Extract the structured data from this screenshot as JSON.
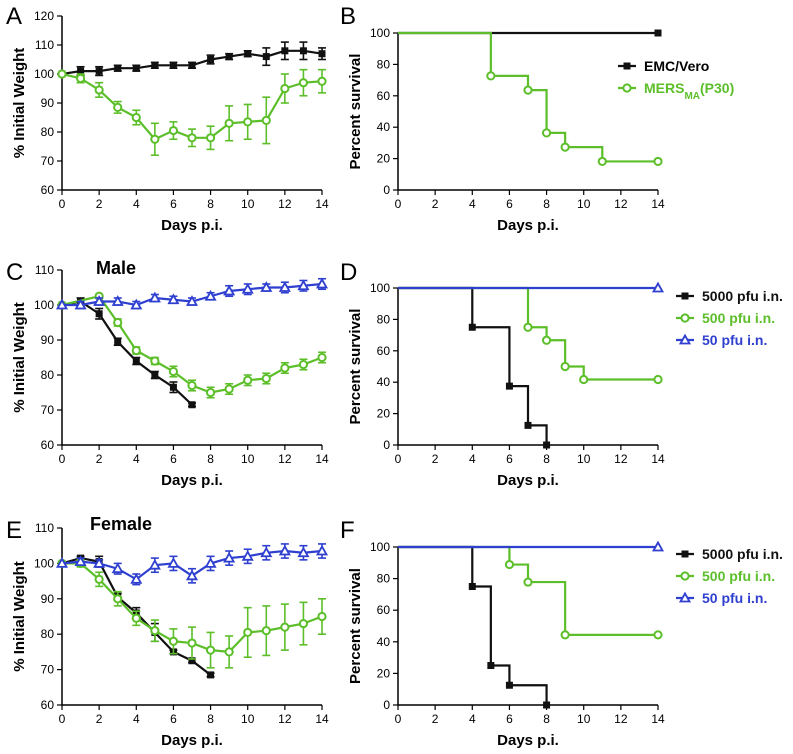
{
  "colors": {
    "black": "#111111",
    "green": "#5cbf2a",
    "blue": "#2f3fd0"
  },
  "chart_data": [
    {
      "panel": "A",
      "type": "line",
      "title": "",
      "xlabel": "Days p.i.",
      "ylabel": "% Initial Weight",
      "xlim": [
        0,
        14
      ],
      "ylim": [
        60,
        120
      ],
      "xticks": [
        "0",
        "2",
        "4",
        "6",
        "8",
        "10",
        "12",
        "14"
      ],
      "yticks": [
        "60",
        "70",
        "80",
        "90",
        "100",
        "110",
        "120"
      ],
      "series": [
        {
          "name": "EMC/Vero",
          "color": "black",
          "marker": "square",
          "x": [
            0,
            1,
            2,
            3,
            4,
            5,
            6,
            7,
            8,
            9,
            10,
            11,
            12,
            13,
            14
          ],
          "y": [
            100,
            101,
            101,
            102,
            102,
            103,
            103,
            103,
            105,
            106,
            107,
            106,
            108,
            108,
            107
          ],
          "err": [
            0,
            1.5,
            1.5,
            1,
            1,
            1,
            1,
            1,
            1.5,
            1,
            1,
            3,
            3,
            3,
            2
          ]
        },
        {
          "name": "MERSMA(P30)",
          "color": "green",
          "marker": "circle",
          "x": [
            0,
            1,
            2,
            3,
            4,
            5,
            6,
            7,
            8,
            9,
            10,
            11,
            12,
            13,
            14
          ],
          "y": [
            100,
            98.5,
            94.5,
            88.5,
            85,
            77.5,
            80.5,
            78,
            78,
            83,
            83.5,
            84,
            95,
            97,
            97.5
          ],
          "err": [
            0,
            1.5,
            2.5,
            2,
            2.5,
            5.5,
            3,
            3,
            4,
            6,
            6,
            8,
            5,
            4.5,
            4
          ]
        }
      ]
    },
    {
      "panel": "B",
      "type": "line",
      "title": "",
      "xlabel": "Days p.i.",
      "ylabel": "Percent survival",
      "xlim": [
        0,
        14
      ],
      "ylim": [
        0,
        100
      ],
      "xticks": [
        "0",
        "2",
        "4",
        "6",
        "8",
        "10",
        "12",
        "14"
      ],
      "yticks": [
        "0",
        "20",
        "40",
        "60",
        "80",
        "100"
      ],
      "legend_position": "top-right",
      "legend": [
        {
          "color": "black",
          "marker": "square",
          "text": "EMC/Vero"
        },
        {
          "color": "green",
          "marker": "circle",
          "text": "MERS",
          "sub": "MA",
          "suffix": "(P30)"
        }
      ],
      "series": [
        {
          "name": "EMC/Vero",
          "color": "black",
          "marker": "square",
          "step": true,
          "x": [
            0,
            14
          ],
          "y": [
            100,
            100
          ],
          "markers_at": [
            14
          ]
        },
        {
          "name": "MERSMA(P30)",
          "color": "green",
          "marker": "circle",
          "step": true,
          "x": [
            0,
            5,
            7,
            8,
            9,
            11,
            14
          ],
          "y": [
            100,
            72.7,
            63.6,
            36.4,
            27.3,
            18.2,
            18.2
          ],
          "markers_at": [
            5,
            7,
            8,
            9,
            11,
            14
          ]
        }
      ]
    },
    {
      "panel": "C",
      "type": "line",
      "title": "Male",
      "xlabel": "Days p.i.",
      "ylabel": "% Initial Weight",
      "xlim": [
        0,
        14
      ],
      "ylim": [
        60,
        110
      ],
      "xticks": [
        "0",
        "2",
        "4",
        "6",
        "8",
        "10",
        "12",
        "14"
      ],
      "yticks": [
        "60",
        "70",
        "80",
        "90",
        "100",
        "110"
      ],
      "series": [
        {
          "name": "5000 pfu i.n.",
          "color": "black",
          "marker": "square",
          "x": [
            0,
            1,
            2,
            3,
            4,
            5,
            6,
            7
          ],
          "y": [
            100,
            101,
            97.5,
            89.5,
            84,
            80,
            76.5,
            71.5
          ],
          "err": [
            0,
            1,
            1.5,
            1,
            1,
            1,
            1.5,
            0.5
          ]
        },
        {
          "name": "500 pfu i.n.",
          "color": "green",
          "marker": "circle",
          "x": [
            0,
            2,
            3,
            4,
            5,
            6,
            7,
            8,
            9,
            10,
            11,
            12,
            13,
            14
          ],
          "y": [
            100,
            102.5,
            95,
            87,
            84,
            81,
            77,
            75,
            76,
            78.5,
            79,
            82,
            83,
            85
          ],
          "err": [
            0,
            0.5,
            1,
            1,
            1,
            1.5,
            1.5,
            1.5,
            1.5,
            1.5,
            1.5,
            1.5,
            1.5,
            1.5
          ]
        },
        {
          "name": "50 pfu i.n.",
          "color": "blue",
          "marker": "triangle",
          "x": [
            0,
            1,
            2,
            3,
            4,
            5,
            6,
            7,
            8,
            9,
            10,
            11,
            12,
            13,
            14
          ],
          "y": [
            100,
            100,
            101,
            101,
            100,
            102,
            101.5,
            101,
            102.5,
            104,
            104.5,
            105,
            105,
            105.5,
            106
          ],
          "err": [
            0,
            1,
            1,
            1,
            1,
            1,
            1,
            1,
            1,
            1.5,
            1.5,
            1,
            1.5,
            1.5,
            1.5
          ]
        }
      ]
    },
    {
      "panel": "D",
      "type": "line",
      "title": "",
      "xlabel": "Days p.i.",
      "ylabel": "Percent survival",
      "xlim": [
        0,
        14
      ],
      "ylim": [
        0,
        100
      ],
      "xticks": [
        "0",
        "2",
        "4",
        "6",
        "8",
        "10",
        "12",
        "14"
      ],
      "yticks": [
        "0",
        "20",
        "40",
        "60",
        "80",
        "100"
      ],
      "legend_position": "top-right",
      "legend": [
        {
          "color": "black",
          "marker": "square",
          "text": "5000 pfu i.n."
        },
        {
          "color": "green",
          "marker": "circle",
          "text": "500 pfu i.n."
        },
        {
          "color": "blue",
          "marker": "triangle",
          "text": "50 pfu i.n."
        }
      ],
      "series": [
        {
          "name": "5000 pfu i.n.",
          "color": "black",
          "marker": "square",
          "step": true,
          "x": [
            0,
            4,
            6,
            7,
            8
          ],
          "y": [
            100,
            75,
            37.5,
            12.5,
            0
          ],
          "markers_at": [
            4,
            6,
            7,
            8
          ]
        },
        {
          "name": "500 pfu i.n.",
          "color": "green",
          "marker": "circle",
          "step": true,
          "x": [
            0,
            7,
            8,
            9,
            10,
            14
          ],
          "y": [
            100,
            75,
            66.7,
            50,
            41.7,
            41.7
          ],
          "markers_at": [
            7,
            8,
            9,
            10,
            14
          ]
        },
        {
          "name": "50 pfu i.n.",
          "color": "blue",
          "marker": "triangle",
          "step": true,
          "x": [
            0,
            14
          ],
          "y": [
            100,
            100
          ],
          "markers_at": [
            14
          ]
        }
      ]
    },
    {
      "panel": "E",
      "type": "line",
      "title": "Female",
      "xlabel": "Days p.i.",
      "ylabel": "% Initial Weight",
      "xlim": [
        0,
        14
      ],
      "ylim": [
        60,
        110
      ],
      "xticks": [
        "0",
        "2",
        "4",
        "6",
        "8",
        "10",
        "12",
        "14"
      ],
      "yticks": [
        "60",
        "70",
        "80",
        "90",
        "100",
        "110"
      ],
      "series": [
        {
          "name": "5000 pfu i.n.",
          "color": "black",
          "marker": "square",
          "x": [
            0,
            1,
            2,
            3,
            4,
            5,
            6,
            7,
            8
          ],
          "y": [
            100,
            101.5,
            100.5,
            90.5,
            86,
            80.5,
            75,
            72.5,
            68.5
          ],
          "err": [
            0,
            0.5,
            1.5,
            1,
            1.5,
            2.5,
            0.5,
            0.5,
            0.5
          ]
        },
        {
          "name": "500 pfu i.n.",
          "color": "green",
          "marker": "circle",
          "x": [
            0,
            1,
            2,
            3,
            4,
            5,
            6,
            7,
            8,
            9,
            10,
            11,
            12,
            13,
            14
          ],
          "y": [
            100,
            100,
            95.5,
            90,
            84.5,
            81,
            78,
            77.5,
            75.5,
            75,
            80.5,
            81,
            82,
            83,
            85
          ],
          "err": [
            0,
            1,
            2,
            2,
            2,
            3,
            3.5,
            4.5,
            5,
            4.5,
            7,
            7,
            6.5,
            6,
            5
          ]
        },
        {
          "name": "50 pfu i.n.",
          "color": "blue",
          "marker": "triangle",
          "x": [
            0,
            1,
            2,
            3,
            4,
            5,
            6,
            7,
            8,
            9,
            10,
            11,
            12,
            13,
            14
          ],
          "y": [
            100,
            100.5,
            100,
            98.5,
            95.5,
            99.5,
            100,
            96.5,
            100,
            101.5,
            102,
            103,
            103.5,
            103,
            103.5
          ],
          "err": [
            0,
            1,
            1,
            1.5,
            1.5,
            2,
            2,
            2,
            2,
            2,
            2,
            2,
            2,
            2,
            2
          ]
        }
      ]
    },
    {
      "panel": "F",
      "type": "line",
      "title": "",
      "xlabel": "Days p.i.",
      "ylabel": "Percent survival",
      "xlim": [
        0,
        14
      ],
      "ylim": [
        0,
        100
      ],
      "xticks": [
        "0",
        "2",
        "4",
        "6",
        "8",
        "10",
        "12",
        "14"
      ],
      "yticks": [
        "0",
        "20",
        "40",
        "60",
        "80",
        "100"
      ],
      "legend_position": "top-right",
      "legend": [
        {
          "color": "black",
          "marker": "square",
          "text": "5000 pfu i.n."
        },
        {
          "color": "green",
          "marker": "circle",
          "text": "500 pfu i.n."
        },
        {
          "color": "blue",
          "marker": "triangle",
          "text": "50 pfu i.n."
        }
      ],
      "series": [
        {
          "name": "5000 pfu i.n.",
          "color": "black",
          "marker": "square",
          "step": true,
          "x": [
            0,
            4,
            5,
            6,
            8
          ],
          "y": [
            100,
            75,
            25,
            12.5,
            0
          ],
          "markers_at": [
            4,
            5,
            6,
            8
          ]
        },
        {
          "name": "500 pfu i.n.",
          "color": "green",
          "marker": "circle",
          "step": true,
          "x": [
            0,
            6,
            7,
            9,
            14
          ],
          "y": [
            100,
            88.9,
            77.8,
            44.4,
            44.4
          ],
          "markers_at": [
            6,
            7,
            9,
            14
          ]
        },
        {
          "name": "50 pfu i.n.",
          "color": "blue",
          "marker": "triangle",
          "step": true,
          "x": [
            0,
            14
          ],
          "y": [
            100,
            100
          ],
          "markers_at": [
            14
          ]
        }
      ]
    }
  ]
}
